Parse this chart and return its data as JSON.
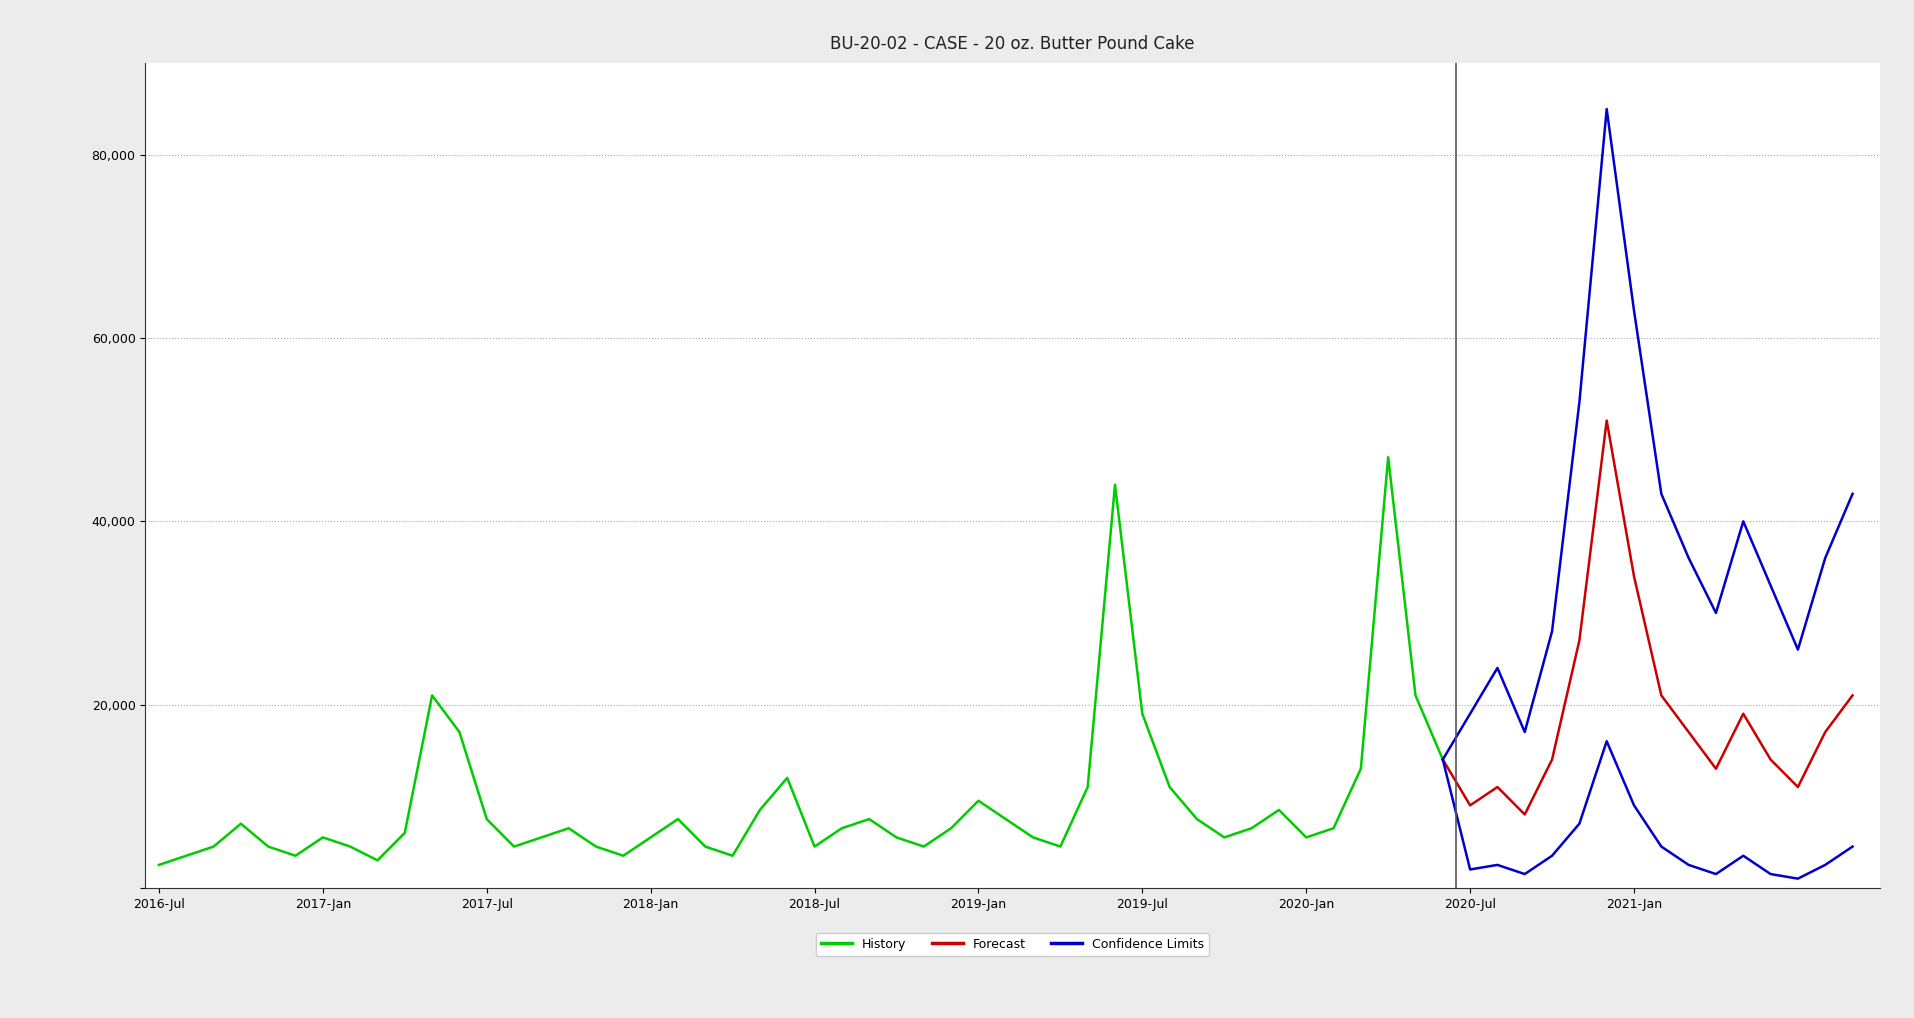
{
  "title": "BU-20-02 - CASE - 20 oz. Butter Pound Cake",
  "bg_color": "#ffffff",
  "outer_bg_color": "#ececec",
  "grid_color": "#aaaaaa",
  "history_color": "#00cc00",
  "forecast_color": "#cc0000",
  "confidence_color": "#0000cc",
  "divider_color": "#555555",
  "ylim": [
    0,
    90000
  ],
  "yticks": [
    0,
    20000,
    40000,
    60000,
    80000
  ],
  "ytick_labels": [
    "",
    "20,000",
    "40,000",
    "60,000",
    "80,000"
  ],
  "xtick_labels": [
    "2016-Jul",
    "2017-Jan",
    "2017-Jul",
    "2018-Jan",
    "2018-Jul",
    "2019-Jan",
    "2019-Jul",
    "2020-Jan",
    "2020-Jul",
    "2021-Jan"
  ],
  "xtick_positions": [
    0,
    6,
    12,
    18,
    24,
    30,
    36,
    42,
    48,
    54
  ],
  "legend_labels": [
    "History",
    "Forecast",
    "Confidence Limits"
  ],
  "history_x": [
    0,
    1,
    2,
    3,
    4,
    5,
    6,
    7,
    8,
    9,
    10,
    11,
    12,
    13,
    14,
    15,
    16,
    17,
    18,
    19,
    20,
    21,
    22,
    23,
    24,
    25,
    26,
    27,
    28,
    29,
    30,
    31,
    32,
    33,
    34,
    35,
    36,
    37,
    38,
    39,
    40,
    41,
    42,
    43,
    44,
    45,
    46,
    47
  ],
  "history_y": [
    2500,
    3500,
    4500,
    7000,
    4500,
    3500,
    5500,
    4500,
    3000,
    6000,
    21000,
    17000,
    7500,
    4500,
    5500,
    6500,
    4500,
    3500,
    5500,
    7500,
    4500,
    3500,
    8500,
    12000,
    4500,
    6500,
    7500,
    5500,
    4500,
    6500,
    9500,
    7500,
    5500,
    4500,
    11000,
    44000,
    19000,
    11000,
    7500,
    5500,
    6500,
    8500,
    5500,
    6500,
    13000,
    47000,
    21000,
    14000
  ],
  "forecast_x": [
    47,
    48,
    49,
    50,
    51,
    52,
    53,
    54,
    55,
    56,
    57,
    58,
    59,
    60,
    61,
    62
  ],
  "forecast_y": [
    14000,
    9000,
    11000,
    8000,
    14000,
    27000,
    51000,
    34000,
    21000,
    17000,
    13000,
    19000,
    14000,
    11000,
    17000,
    21000
  ],
  "conf_upper_x": [
    47,
    48,
    49,
    50,
    51,
    52,
    53,
    54,
    55,
    56,
    57,
    58,
    59,
    60,
    61,
    62
  ],
  "conf_upper_y": [
    14000,
    19000,
    24000,
    17000,
    28000,
    53000,
    85000,
    63000,
    43000,
    36000,
    30000,
    40000,
    33000,
    26000,
    36000,
    43000
  ],
  "conf_lower_x": [
    47,
    48,
    49,
    50,
    51,
    52,
    53,
    54,
    55,
    56,
    57,
    58,
    59,
    60,
    61,
    62
  ],
  "conf_lower_y": [
    14000,
    2000,
    2500,
    1500,
    3500,
    7000,
    16000,
    9000,
    4500,
    2500,
    1500,
    3500,
    1500,
    1000,
    2500,
    4500
  ],
  "divider_x": 47.5,
  "xlim": [
    -0.5,
    63
  ],
  "title_fontsize": 12,
  "tick_fontsize": 9,
  "legend_fontsize": 9
}
